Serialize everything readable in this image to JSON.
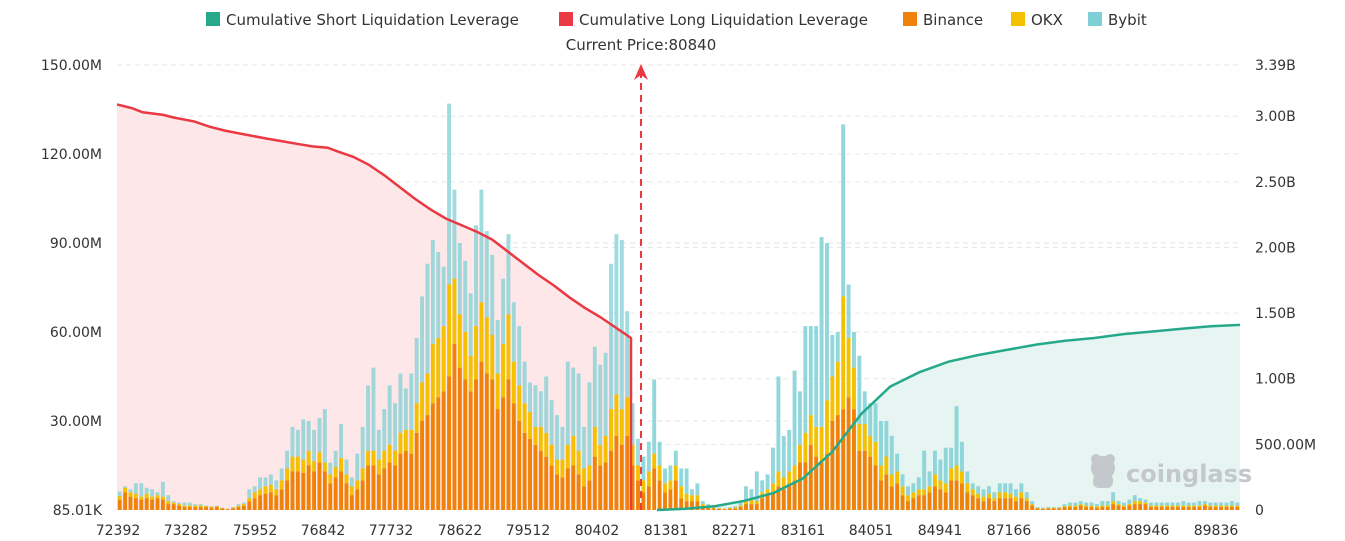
{
  "chart_data": {
    "type": "bar+line",
    "title": "",
    "legend": [
      {
        "name": "Cumulative Short Liquidation Leverage",
        "color": "#26a98b"
      },
      {
        "name": "Cumulative Long Liquidation Leverage",
        "color": "#ea3943"
      },
      {
        "name": "Binance",
        "color": "#f0820a"
      },
      {
        "name": "OKX",
        "color": "#f5c000"
      },
      {
        "name": "Bybit",
        "color": "#7fd0d6"
      }
    ],
    "current_price_label": "Current Price:80840",
    "current_price": 80840,
    "x_tick_labels": [
      "72392",
      "73282",
      "75952",
      "76842",
      "77732",
      "78622",
      "79512",
      "80402",
      "81381",
      "82271",
      "83161",
      "84051",
      "84941",
      "87166",
      "88056",
      "88946",
      "89836"
    ],
    "y_left_ticks": [
      "85.01K",
      "30.00M",
      "60.00M",
      "90.00M",
      "120.00M",
      "150.00M"
    ],
    "y_left_range": [
      0,
      150000000
    ],
    "y_right_ticks": [
      "0",
      "500.00M",
      "1.00B",
      "1.50B",
      "2.00B",
      "2.50B",
      "3.00B",
      "3.39B"
    ],
    "y_right_range": [
      0,
      3390000000
    ],
    "bar_units": "M",
    "bars": [
      {
        "b": 3.5,
        "o": 1.2,
        "y": 1.5
      },
      {
        "b": 6.0,
        "o": 1.5,
        "y": 0.5
      },
      {
        "b": 4.5,
        "o": 1.5,
        "y": 1.0
      },
      {
        "b": 4.0,
        "o": 1.5,
        "y": 3.5
      },
      {
        "b": 3.5,
        "o": 1.0,
        "y": 4.5
      },
      {
        "b": 4.0,
        "o": 1.5,
        "y": 2.0
      },
      {
        "b": 3.5,
        "o": 1.0,
        "y": 2.5
      },
      {
        "b": 4.0,
        "o": 1.0,
        "y": 1.0
      },
      {
        "b": 3.5,
        "o": 1.0,
        "y": 5.0
      },
      {
        "b": 2.0,
        "o": 1.0,
        "y": 2.0
      },
      {
        "b": 2.0,
        "o": 0.5,
        "y": 0.5
      },
      {
        "b": 1.5,
        "o": 0.5,
        "y": 0.5
      },
      {
        "b": 1.0,
        "o": 0.5,
        "y": 1.0
      },
      {
        "b": 1.0,
        "o": 0.5,
        "y": 1.0
      },
      {
        "b": 1.0,
        "o": 0.5,
        "y": 0.5
      },
      {
        "b": 1.0,
        "o": 0.5,
        "y": 0.5
      },
      {
        "b": 1.0,
        "o": 0.3,
        "y": 0.2
      },
      {
        "b": 0.8,
        "o": 0.3,
        "y": 0.2
      },
      {
        "b": 1.0,
        "o": 0.3,
        "y": 0.2
      },
      {
        "b": 0.5,
        "o": 0.2,
        "y": 0.1
      },
      {
        "b": 0.3,
        "o": 0.1,
        "y": 0.1
      },
      {
        "b": 0.6,
        "o": 0.2,
        "y": 0.2
      },
      {
        "b": 1.0,
        "o": 0.4,
        "y": 0.6
      },
      {
        "b": 1.5,
        "o": 0.5,
        "y": 0.5
      },
      {
        "b": 3.0,
        "o": 1.0,
        "y": 3.0
      },
      {
        "b": 4.0,
        "o": 2.0,
        "y": 2.0
      },
      {
        "b": 5.0,
        "o": 2.0,
        "y": 4.0
      },
      {
        "b": 5.5,
        "o": 2.5,
        "y": 3.0
      },
      {
        "b": 6.0,
        "o": 2.5,
        "y": 3.5
      },
      {
        "b": 5.0,
        "o": 2.0,
        "y": 3.0
      },
      {
        "b": 7.0,
        "o": 3.0,
        "y": 4.0
      },
      {
        "b": 10.0,
        "o": 4.0,
        "y": 6.0
      },
      {
        "b": 13.0,
        "o": 5.0,
        "y": 10.0
      },
      {
        "b": 13.0,
        "o": 5.0,
        "y": 9.0
      },
      {
        "b": 12.5,
        "o": 4.5,
        "y": 13.5
      },
      {
        "b": 15.0,
        "o": 5.0,
        "y": 10.0
      },
      {
        "b": 13.0,
        "o": 3.5,
        "y": 10.5
      },
      {
        "b": 16.0,
        "o": 3.5,
        "y": 11.5
      },
      {
        "b": 13.0,
        "o": 3.0,
        "y": 18.0
      },
      {
        "b": 9.0,
        "o": 3.0,
        "y": 4.0
      },
      {
        "b": 11.0,
        "o": 3.5,
        "y": 5.5
      },
      {
        "b": 13.0,
        "o": 4.5,
        "y": 11.5
      },
      {
        "b": 9.0,
        "o": 3.0,
        "y": 5.0
      },
      {
        "b": 5.0,
        "o": 3.0,
        "y": 3.0
      },
      {
        "b": 7.0,
        "o": 3.0,
        "y": 9.0
      },
      {
        "b": 10.0,
        "o": 4.0,
        "y": 14.0
      },
      {
        "b": 15.0,
        "o": 5.0,
        "y": 22.0
      },
      {
        "b": 15.0,
        "o": 5.0,
        "y": 28.0
      },
      {
        "b": 12.0,
        "o": 5.0,
        "y": 10.0
      },
      {
        "b": 14.0,
        "o": 6.0,
        "y": 14.0
      },
      {
        "b": 16.0,
        "o": 6.0,
        "y": 20.0
      },
      {
        "b": 15.0,
        "o": 5.0,
        "y": 16.0
      },
      {
        "b": 19.0,
        "o": 7.0,
        "y": 20.0
      },
      {
        "b": 20.0,
        "o": 7.0,
        "y": 14.0
      },
      {
        "b": 19.0,
        "o": 8.0,
        "y": 19.0
      },
      {
        "b": 26.0,
        "o": 10.0,
        "y": 22.0
      },
      {
        "b": 30.0,
        "o": 13.0,
        "y": 29.0
      },
      {
        "b": 32.0,
        "o": 14.0,
        "y": 37.0
      },
      {
        "b": 36.0,
        "o": 20.0,
        "y": 35.0
      },
      {
        "b": 38.0,
        "o": 20.0,
        "y": 29.0
      },
      {
        "b": 40.0,
        "o": 22.0,
        "y": 20.0
      },
      {
        "b": 45.0,
        "o": 31.0,
        "y": 61.0
      },
      {
        "b": 56.0,
        "o": 22.0,
        "y": 30.0
      },
      {
        "b": 48.0,
        "o": 18.0,
        "y": 24.0
      },
      {
        "b": 44.0,
        "o": 16.0,
        "y": 24.0
      },
      {
        "b": 40.0,
        "o": 12.0,
        "y": 21.0
      },
      {
        "b": 44.0,
        "o": 18.0,
        "y": 34.0
      },
      {
        "b": 50.0,
        "o": 20.0,
        "y": 38.0
      },
      {
        "b": 46.0,
        "o": 19.0,
        "y": 29.0
      },
      {
        "b": 44.0,
        "o": 15.0,
        "y": 27.0
      },
      {
        "b": 34.0,
        "o": 12.0,
        "y": 18.0
      },
      {
        "b": 38.0,
        "o": 18.0,
        "y": 22.0
      },
      {
        "b": 44.0,
        "o": 22.0,
        "y": 27.0
      },
      {
        "b": 36.0,
        "o": 14.0,
        "y": 20.0
      },
      {
        "b": 30.0,
        "o": 12.0,
        "y": 20.0
      },
      {
        "b": 26.0,
        "o": 10.0,
        "y": 14.0
      },
      {
        "b": 24.0,
        "o": 9.0,
        "y": 10.0
      },
      {
        "b": 22.0,
        "o": 6.0,
        "y": 14.0
      },
      {
        "b": 20.0,
        "o": 8.0,
        "y": 12.0
      },
      {
        "b": 18.0,
        "o": 8.0,
        "y": 19.0
      },
      {
        "b": 15.0,
        "o": 7.0,
        "y": 15.0
      },
      {
        "b": 12.0,
        "o": 5.0,
        "y": 15.0
      },
      {
        "b": 11.0,
        "o": 6.0,
        "y": 11.0
      },
      {
        "b": 14.0,
        "o": 8.0,
        "y": 28.0
      },
      {
        "b": 15.0,
        "o": 10.0,
        "y": 23.0
      },
      {
        "b": 12.0,
        "o": 8.0,
        "y": 26.0
      },
      {
        "b": 8.0,
        "o": 6.0,
        "y": 14.0
      },
      {
        "b": 10.0,
        "o": 5.0,
        "y": 28.0
      },
      {
        "b": 18.0,
        "o": 10.0,
        "y": 27.0
      },
      {
        "b": 15.0,
        "o": 7.0,
        "y": 27.0
      },
      {
        "b": 16.0,
        "o": 9.0,
        "y": 28.0
      },
      {
        "b": 20.0,
        "o": 14.0,
        "y": 49.0
      },
      {
        "b": 25.0,
        "o": 14.0,
        "y": 54.0
      },
      {
        "b": 22.0,
        "o": 12.0,
        "y": 57.0
      },
      {
        "b": 25.0,
        "o": 13.0,
        "y": 29.0
      },
      {
        "b": 15.0,
        "o": 7.0,
        "y": 14.0
      },
      {
        "b": 10.0,
        "o": 5.0,
        "y": 9.0
      },
      {
        "b": 6.0,
        "o": 4.0,
        "y": 8.0
      },
      {
        "b": 8.0,
        "o": 5.0,
        "y": 10.0
      },
      {
        "b": 14.0,
        "o": 5.0,
        "y": 25.0
      },
      {
        "b": 10.0,
        "o": 5.0,
        "y": 8.0
      },
      {
        "b": 6.0,
        "o": 3.0,
        "y": 5.0
      },
      {
        "b": 7.0,
        "o": 3.0,
        "y": 5.0
      },
      {
        "b": 10.0,
        "o": 5.0,
        "y": 5.0
      },
      {
        "b": 4.0,
        "o": 4.0,
        "y": 6.0
      },
      {
        "b": 3.0,
        "o": 2.5,
        "y": 8.5
      },
      {
        "b": 3.0,
        "o": 2.0,
        "y": 2.0
      },
      {
        "b": 3.0,
        "o": 2.0,
        "y": 4.0
      },
      {
        "b": 1.0,
        "o": 1.0,
        "y": 1.0
      },
      {
        "b": 1.0,
        "o": 0.5,
        "y": 0.5
      },
      {
        "b": 0.5,
        "o": 0.3,
        "y": 0.4
      },
      {
        "b": 0.4,
        "o": 0.2,
        "y": 0.2
      },
      {
        "b": 0.3,
        "o": 0.1,
        "y": 0.1
      },
      {
        "b": 0.5,
        "o": 0.2,
        "y": 0.2
      },
      {
        "b": 0.6,
        "o": 0.3,
        "y": 0.4
      },
      {
        "b": 1.0,
        "o": 0.5,
        "y": 1.0
      },
      {
        "b": 2.0,
        "o": 1.0,
        "y": 5.0
      },
      {
        "b": 2.0,
        "o": 1.5,
        "y": 3.5
      },
      {
        "b": 2.0,
        "o": 1.0,
        "y": 10.0
      },
      {
        "b": 4.0,
        "o": 2.0,
        "y": 4.0
      },
      {
        "b": 5.0,
        "o": 2.0,
        "y": 5.0
      },
      {
        "b": 6.0,
        "o": 3.0,
        "y": 12.0
      },
      {
        "b": 8.0,
        "o": 5.0,
        "y": 32.0
      },
      {
        "b": 7.0,
        "o": 4.0,
        "y": 14.0
      },
      {
        "b": 9.0,
        "o": 4.0,
        "y": 14.0
      },
      {
        "b": 10.0,
        "o": 5.0,
        "y": 32.0
      },
      {
        "b": 16.0,
        "o": 6.0,
        "y": 18.0
      },
      {
        "b": 16.0,
        "o": 10.0,
        "y": 36.0
      },
      {
        "b": 22.0,
        "o": 10.0,
        "y": 30.0
      },
      {
        "b": 18.0,
        "o": 10.0,
        "y": 34.0
      },
      {
        "b": 16.0,
        "o": 12.0,
        "y": 64.0
      },
      {
        "b": 19.0,
        "o": 18.0,
        "y": 53.0
      },
      {
        "b": 30.0,
        "o": 15.0,
        "y": 14.0
      },
      {
        "b": 32.0,
        "o": 18.0,
        "y": 10.0
      },
      {
        "b": 34.0,
        "o": 38.0,
        "y": 58.0
      },
      {
        "b": 38.0,
        "o": 20.0,
        "y": 18.0
      },
      {
        "b": 34.0,
        "o": 14.0,
        "y": 12.0
      },
      {
        "b": 20.0,
        "o": 9.0,
        "y": 23.0
      },
      {
        "b": 20.0,
        "o": 9.0,
        "y": 11.0
      },
      {
        "b": 18.0,
        "o": 7.0,
        "y": 11.0
      },
      {
        "b": 15.0,
        "o": 8.0,
        "y": 13.0
      },
      {
        "b": 10.0,
        "o": 5.0,
        "y": 15.0
      },
      {
        "b": 12.0,
        "o": 6.0,
        "y": 12.0
      },
      {
        "b": 8.0,
        "o": 4.0,
        "y": 13.0
      },
      {
        "b": 9.0,
        "o": 4.0,
        "y": 6.0
      },
      {
        "b": 5.0,
        "o": 3.0,
        "y": 4.0
      },
      {
        "b": 3.0,
        "o": 2.0,
        "y": 3.0
      },
      {
        "b": 4.0,
        "o": 2.0,
        "y": 3.0
      },
      {
        "b": 5.0,
        "o": 2.0,
        "y": 4.0
      },
      {
        "b": 5.0,
        "o": 2.0,
        "y": 13.0
      },
      {
        "b": 6.0,
        "o": 2.0,
        "y": 5.0
      },
      {
        "b": 8.0,
        "o": 4.0,
        "y": 8.0
      },
      {
        "b": 7.0,
        "o": 3.0,
        "y": 7.0
      },
      {
        "b": 6.0,
        "o": 3.0,
        "y": 12.0
      },
      {
        "b": 10.0,
        "o": 4.0,
        "y": 7.0
      },
      {
        "b": 10.0,
        "o": 5.0,
        "y": 20.0
      },
      {
        "b": 9.0,
        "o": 4.0,
        "y": 10.0
      },
      {
        "b": 6.0,
        "o": 3.0,
        "y": 4.0
      },
      {
        "b": 5.0,
        "o": 2.0,
        "y": 2.0
      },
      {
        "b": 4.0,
        "o": 1.5,
        "y": 2.5
      },
      {
        "b": 3.0,
        "o": 1.5,
        "y": 2.5
      },
      {
        "b": 4.0,
        "o": 1.5,
        "y": 2.5
      },
      {
        "b": 3.0,
        "o": 1.0,
        "y": 2.0
      },
      {
        "b": 4.0,
        "o": 2.0,
        "y": 3.0
      },
      {
        "b": 4.0,
        "o": 2.0,
        "y": 3.0
      },
      {
        "b": 4.0,
        "o": 1.5,
        "y": 3.5
      },
      {
        "b": 3.0,
        "o": 1.5,
        "y": 2.5
      },
      {
        "b": 4.0,
        "o": 2.0,
        "y": 3.0
      },
      {
        "b": 3.0,
        "o": 1.0,
        "y": 2.0
      },
      {
        "b": 1.5,
        "o": 0.5,
        "y": 1.0
      },
      {
        "b": 0.5,
        "o": 0.2,
        "y": 0.3
      },
      {
        "b": 0.4,
        "o": 0.2,
        "y": 0.2
      },
      {
        "b": 0.5,
        "o": 0.2,
        "y": 0.3
      },
      {
        "b": 0.6,
        "o": 0.2,
        "y": 0.2
      },
      {
        "b": 0.6,
        "o": 0.2,
        "y": 0.2
      },
      {
        "b": 1.0,
        "o": 0.3,
        "y": 0.7
      },
      {
        "b": 1.0,
        "o": 0.5,
        "y": 1.0
      },
      {
        "b": 1.0,
        "o": 0.5,
        "y": 1.0
      },
      {
        "b": 1.5,
        "o": 0.5,
        "y": 1.0
      },
      {
        "b": 1.0,
        "o": 0.5,
        "y": 1.0
      },
      {
        "b": 1.0,
        "o": 0.5,
        "y": 1.0
      },
      {
        "b": 0.8,
        "o": 0.4,
        "y": 0.8
      },
      {
        "b": 1.0,
        "o": 0.5,
        "y": 1.5
      },
      {
        "b": 1.0,
        "o": 0.5,
        "y": 1.5
      },
      {
        "b": 2.0,
        "o": 1.0,
        "y": 3.0
      },
      {
        "b": 1.5,
        "o": 0.5,
        "y": 1.0
      },
      {
        "b": 1.0,
        "o": 0.5,
        "y": 1.0
      },
      {
        "b": 1.5,
        "o": 0.5,
        "y": 1.5
      },
      {
        "b": 2.0,
        "o": 1.0,
        "y": 2.0
      },
      {
        "b": 2.0,
        "o": 1.0,
        "y": 1.0
      },
      {
        "b": 2.0,
        "o": 0.5,
        "y": 1.0
      },
      {
        "b": 1.0,
        "o": 0.5,
        "y": 1.0
      },
      {
        "b": 1.0,
        "o": 0.5,
        "y": 1.0
      },
      {
        "b": 1.0,
        "o": 0.5,
        "y": 1.0
      },
      {
        "b": 1.0,
        "o": 0.5,
        "y": 1.0
      },
      {
        "b": 1.0,
        "o": 0.5,
        "y": 1.0
      },
      {
        "b": 1.0,
        "o": 0.5,
        "y": 1.0
      },
      {
        "b": 1.0,
        "o": 0.5,
        "y": 1.5
      },
      {
        "b": 1.0,
        "o": 0.5,
        "y": 1.0
      },
      {
        "b": 1.0,
        "o": 0.5,
        "y": 1.0
      },
      {
        "b": 1.0,
        "o": 0.5,
        "y": 1.5
      },
      {
        "b": 1.5,
        "o": 0.5,
        "y": 1.0
      },
      {
        "b": 1.0,
        "o": 0.5,
        "y": 1.0
      },
      {
        "b": 1.0,
        "o": 0.5,
        "y": 1.0
      },
      {
        "b": 1.0,
        "o": 0.5,
        "y": 1.0
      },
      {
        "b": 1.0,
        "o": 0.5,
        "y": 1.0
      },
      {
        "b": 1.0,
        "o": 0.5,
        "y": 1.5
      },
      {
        "b": 1.0,
        "o": 0.5,
        "y": 1.0
      }
    ],
    "long_cumulative_B": [
      {
        "p": 0.0,
        "v": 3.09
      },
      {
        "p": 0.03,
        "v": 3.06
      },
      {
        "p": 0.05,
        "v": 3.03
      },
      {
        "p": 0.09,
        "v": 3.01
      },
      {
        "p": 0.11,
        "v": 2.99
      },
      {
        "p": 0.15,
        "v": 2.96
      },
      {
        "p": 0.18,
        "v": 2.92
      },
      {
        "p": 0.21,
        "v": 2.89
      },
      {
        "p": 0.25,
        "v": 2.86
      },
      {
        "p": 0.29,
        "v": 2.83
      },
      {
        "p": 0.32,
        "v": 2.81
      },
      {
        "p": 0.35,
        "v": 2.79
      },
      {
        "p": 0.38,
        "v": 2.77
      },
      {
        "p": 0.41,
        "v": 2.76
      },
      {
        "p": 0.43,
        "v": 2.73
      },
      {
        "p": 0.46,
        "v": 2.69
      },
      {
        "p": 0.49,
        "v": 2.63
      },
      {
        "p": 0.52,
        "v": 2.55
      },
      {
        "p": 0.55,
        "v": 2.46
      },
      {
        "p": 0.58,
        "v": 2.37
      },
      {
        "p": 0.61,
        "v": 2.29
      },
      {
        "p": 0.64,
        "v": 2.22
      },
      {
        "p": 0.67,
        "v": 2.17
      },
      {
        "p": 0.7,
        "v": 2.12
      },
      {
        "p": 0.73,
        "v": 2.06
      },
      {
        "p": 0.76,
        "v": 1.97
      },
      {
        "p": 0.79,
        "v": 1.88
      },
      {
        "p": 0.82,
        "v": 1.79
      },
      {
        "p": 0.85,
        "v": 1.71
      },
      {
        "p": 0.88,
        "v": 1.62
      },
      {
        "p": 0.91,
        "v": 1.54
      },
      {
        "p": 0.94,
        "v": 1.47
      },
      {
        "p": 0.97,
        "v": 1.39
      },
      {
        "p": 1.0,
        "v": 1.31
      }
    ],
    "short_cumulative_B": [
      {
        "p": 0.0,
        "v": 0.0
      },
      {
        "p": 0.05,
        "v": 0.01
      },
      {
        "p": 0.1,
        "v": 0.03
      },
      {
        "p": 0.15,
        "v": 0.07
      },
      {
        "p": 0.2,
        "v": 0.13
      },
      {
        "p": 0.25,
        "v": 0.24
      },
      {
        "p": 0.3,
        "v": 0.44
      },
      {
        "p": 0.35,
        "v": 0.73
      },
      {
        "p": 0.4,
        "v": 0.94
      },
      {
        "p": 0.45,
        "v": 1.05
      },
      {
        "p": 0.5,
        "v": 1.13
      },
      {
        "p": 0.55,
        "v": 1.18
      },
      {
        "p": 0.6,
        "v": 1.22
      },
      {
        "p": 0.65,
        "v": 1.26
      },
      {
        "p": 0.7,
        "v": 1.29
      },
      {
        "p": 0.75,
        "v": 1.31
      },
      {
        "p": 0.8,
        "v": 1.34
      },
      {
        "p": 0.85,
        "v": 1.36
      },
      {
        "p": 0.9,
        "v": 1.38
      },
      {
        "p": 0.95,
        "v": 1.4
      },
      {
        "p": 1.0,
        "v": 1.41
      }
    ],
    "watermark": "coinglass"
  }
}
